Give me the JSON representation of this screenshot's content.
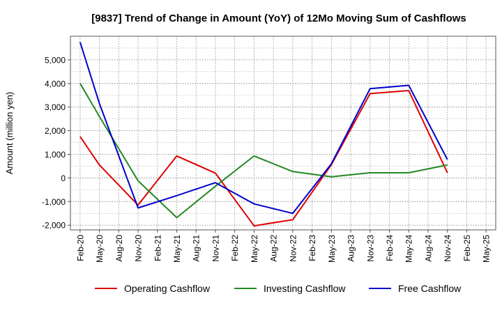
{
  "chart_data": {
    "type": "line",
    "title": "[9837]  Trend of Change in Amount (YoY) of 12Mo Moving Sum of Cashflows",
    "ylabel": "Amount (million yen)",
    "xlabel": "",
    "ylim": [
      -2200,
      6000
    ],
    "yticks": [
      -2000,
      -1000,
      0,
      1000,
      2000,
      3000,
      4000,
      5000
    ],
    "ytick_labels": [
      "-2,000",
      "-1,000",
      "0",
      "1,000",
      "2,000",
      "3,000",
      "4,000",
      "5,000"
    ],
    "categories": [
      "Feb-20",
      "May-20",
      "Aug-20",
      "Nov-20",
      "Feb-21",
      "May-21",
      "Aug-21",
      "Nov-21",
      "Feb-22",
      "May-22",
      "Aug-22",
      "Nov-22",
      "Feb-23",
      "May-23",
      "Aug-23",
      "Nov-23",
      "Feb-24",
      "May-24",
      "Aug-24",
      "Nov-24",
      "Feb-25",
      "May-25"
    ],
    "grid": true,
    "legend_position": "bottom",
    "series": [
      {
        "name": "Operating Cashflow",
        "color": "#dd0000",
        "values": [
          1750,
          550,
          null,
          -1150,
          null,
          930,
          null,
          200,
          null,
          -2030,
          null,
          -1770,
          null,
          560,
          null,
          3570,
          null,
          3700,
          null,
          220,
          null,
          null
        ]
      },
      {
        "name": "Investing Cashflow",
        "color": "#228822",
        "values": [
          4000,
          2600,
          null,
          -120,
          null,
          -1680,
          null,
          -350,
          null,
          930,
          null,
          270,
          null,
          50,
          null,
          220,
          null,
          220,
          null,
          550,
          null,
          null
        ]
      },
      {
        "name": "Free Cashflow",
        "color": "#0000cc",
        "values": [
          5750,
          3150,
          null,
          -1270,
          null,
          -750,
          null,
          -200,
          null,
          -1100,
          null,
          -1500,
          null,
          600,
          null,
          3780,
          null,
          3920,
          null,
          780,
          null,
          null
        ]
      }
    ]
  }
}
